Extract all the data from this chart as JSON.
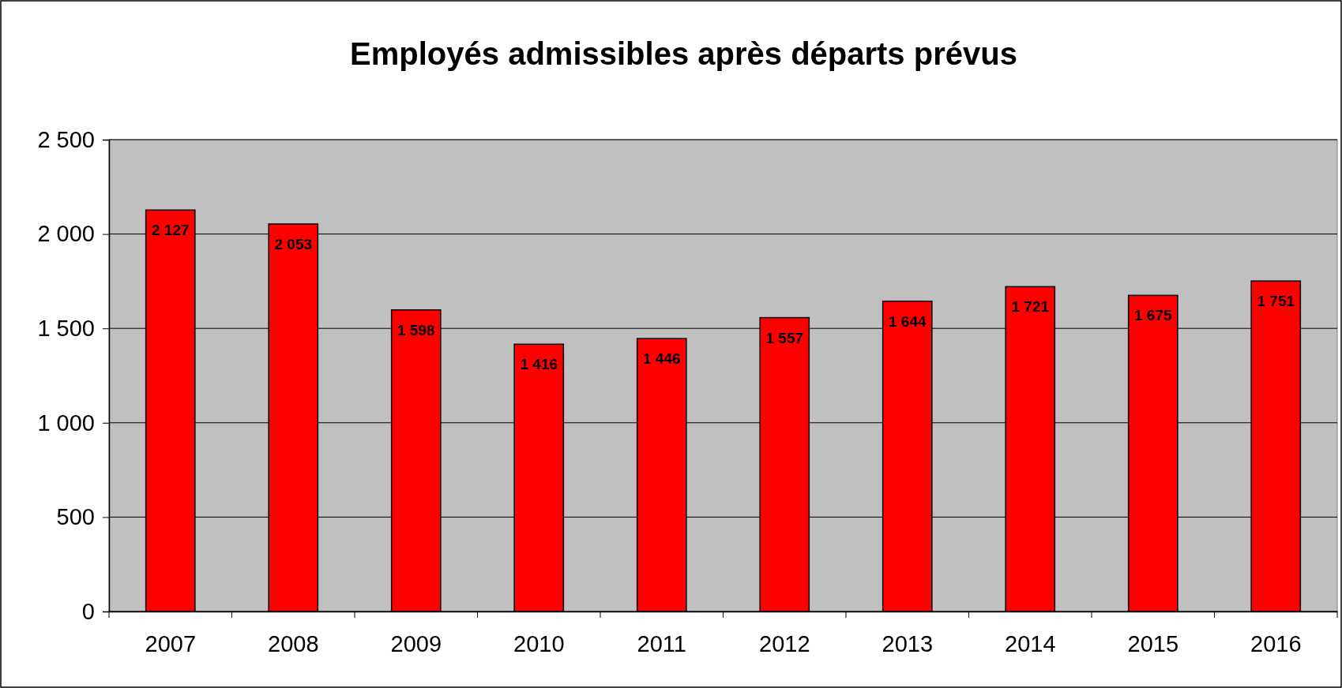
{
  "chart_data": {
    "type": "bar",
    "title": "Employés admissibles après départs prévus",
    "categories": [
      "2007",
      "2008",
      "2009",
      "2010",
      "2011",
      "2012",
      "2013",
      "2014",
      "2015",
      "2016"
    ],
    "values": [
      2127,
      2053,
      1598,
      1416,
      1446,
      1557,
      1644,
      1721,
      1675,
      1751
    ],
    "value_labels": [
      "2 127",
      "2 053",
      "1 598",
      "1 416",
      "1 446",
      "1 557",
      "1 644",
      "1 721",
      "1 675",
      "1 751"
    ],
    "color": "#ff0000",
    "ylim": [
      0,
      2500
    ],
    "yticks": [
      {
        "value": 0,
        "label": "0"
      },
      {
        "value": 500,
        "label": "500"
      },
      {
        "value": 1000,
        "label": "1 000"
      },
      {
        "value": 1500,
        "label": "1 500"
      },
      {
        "value": 2000,
        "label": "2 000"
      },
      {
        "value": 2500,
        "label": "2 500"
      }
    ],
    "grid": "y"
  }
}
